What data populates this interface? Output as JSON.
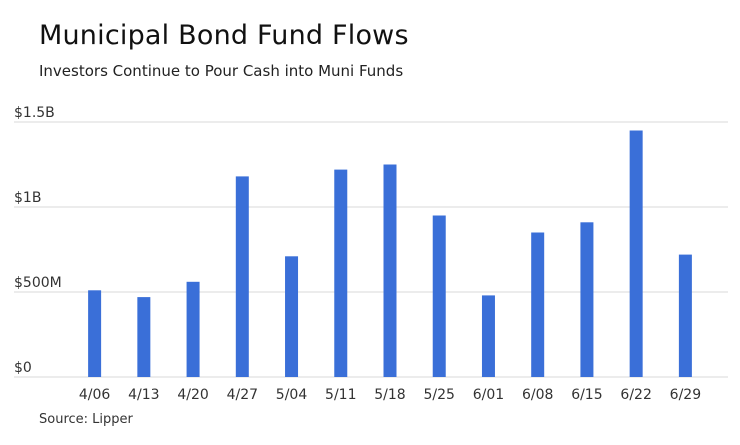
{
  "chart_data": {
    "type": "bar",
    "title": "Municipal Bond Fund Flows",
    "subtitle": "Investors Continue to Pour Cash into Muni Funds",
    "source": "Source: Lipper",
    "categories": [
      "4/06",
      "4/13",
      "4/20",
      "4/27",
      "5/04",
      "5/11",
      "5/18",
      "5/25",
      "6/01",
      "6/08",
      "6/15",
      "6/22",
      "6/29"
    ],
    "values": [
      0.51,
      0.47,
      0.56,
      1.18,
      0.71,
      1.22,
      1.25,
      0.95,
      0.48,
      0.85,
      0.91,
      1.45,
      0.72
    ],
    "value_unit": "billions USD",
    "ylim": [
      0,
      1.5
    ],
    "yticks": [
      {
        "value": 0,
        "label": "$0"
      },
      {
        "value": 0.5,
        "label": "$500M"
      },
      {
        "value": 1.0,
        "label": "$1B"
      },
      {
        "value": 1.5,
        "label": "$1.5B"
      }
    ],
    "grid": true,
    "bar_color": "#3a6fd8",
    "grid_color": "#d9d9d9",
    "xlabel": "",
    "ylabel": ""
  }
}
